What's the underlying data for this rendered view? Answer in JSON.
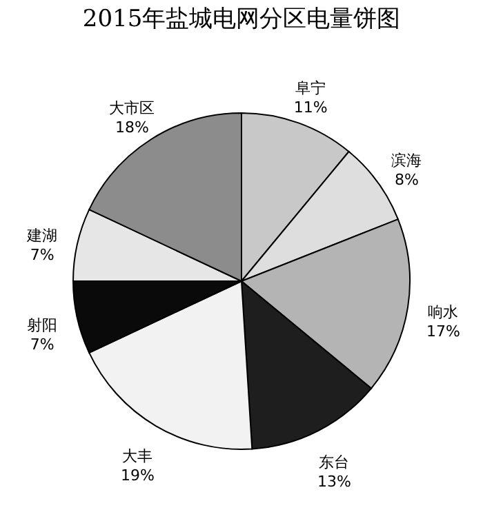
{
  "chart_data": {
    "type": "pie",
    "title": "2015年盐城电网分区电量饼图",
    "categories": [
      "阜宁",
      "滨海",
      "响水",
      "东台",
      "大丰",
      "射阳",
      "建湖",
      "大市区"
    ],
    "values": [
      11,
      8,
      17,
      13,
      19,
      7,
      7,
      18
    ],
    "value_labels": [
      "11%",
      "8%",
      "17%",
      "13%",
      "19%",
      "7%",
      "7%",
      "18%"
    ],
    "colors": [
      "#c8c8c8",
      "#dedede",
      "#b4b4b4",
      "#1e1e1e",
      "#f2f2f2",
      "#0a0a0a",
      "#e6e6e6",
      "#8c8c8c"
    ],
    "legend": false
  }
}
